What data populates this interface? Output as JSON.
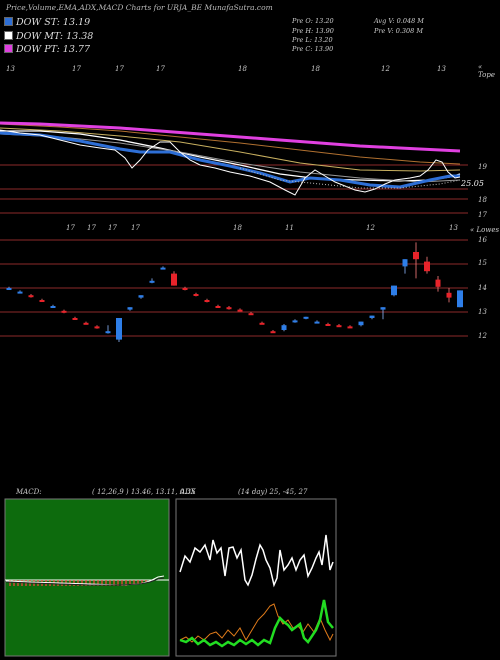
{
  "header": "Price,Volume,EMA,ADX,MACD Charts for URJA_BE MunafaSutra.com",
  "legend": [
    {
      "label": "DOW ST: 13.19",
      "color": "#2e6fd6"
    },
    {
      "label": "DOW MT: 13.38",
      "color": "#ffffff"
    },
    {
      "label": "DOW PT: 13.77",
      "color": "#e040e0"
    }
  ],
  "ohlc": {
    "open": "Pre  O: 13.20",
    "high": "Pre  H: 13.90",
    "low": "Pre  L: 13.20",
    "close": "Pre  C: 13.90",
    "avg_volume": "Avg V: 0.048 M",
    "pre_volume": "Pre  V: 0.308  M"
  },
  "top_panel": {
    "corner": "« Tope",
    "date_labels": [
      "13",
      "17",
      "17",
      "17",
      "18",
      "18",
      "12",
      "13"
    ],
    "y_labels": [
      "19",
      "25.05",
      "18",
      "17"
    ],
    "colors": {
      "ema_white": "#ffffff",
      "ema_pink": "#e040e0",
      "ema_blue": "#2e6fd6",
      "ema_orange": "#d08a30",
      "grid": "#8b2a2a"
    }
  },
  "candle_panel": {
    "corner": "« Lowes",
    "date_labels": [
      "17",
      "17",
      "17",
      "17",
      "18",
      "11",
      "12",
      "13"
    ],
    "y_labels": [
      "16",
      "15",
      "14",
      "13",
      "12"
    ]
  },
  "macd": {
    "title": "MACD:",
    "params": "( 12,26,9 ) 13.46,  13.11,  0.35"
  },
  "adx": {
    "title": "ADX",
    "params": "(14  day) 25,  -45,  27"
  },
  "chart_data": {
    "type": "candlestick",
    "y_axis_labels": [
      16,
      15,
      14,
      13,
      12
    ],
    "candles": [
      {
        "o": 14.0,
        "h": 14.05,
        "l": 13.95,
        "c": 14.0,
        "color": "blue"
      },
      {
        "o": 13.85,
        "h": 13.9,
        "l": 13.8,
        "c": 13.85,
        "color": "blue"
      },
      {
        "o": 13.7,
        "h": 13.75,
        "l": 13.6,
        "c": 13.65,
        "color": "red"
      },
      {
        "o": 13.5,
        "h": 13.55,
        "l": 13.45,
        "c": 13.5,
        "color": "red"
      },
      {
        "o": 13.25,
        "h": 13.3,
        "l": 13.2,
        "c": 13.25,
        "color": "blue"
      },
      {
        "o": 13.05,
        "h": 13.1,
        "l": 12.95,
        "c": 13.0,
        "color": "red"
      },
      {
        "o": 12.75,
        "h": 12.8,
        "l": 12.7,
        "c": 12.75,
        "color": "red"
      },
      {
        "o": 12.55,
        "h": 12.6,
        "l": 12.5,
        "c": 12.55,
        "color": "red"
      },
      {
        "o": 12.4,
        "h": 12.45,
        "l": 12.3,
        "c": 12.35,
        "color": "red"
      },
      {
        "o": 12.15,
        "h": 12.45,
        "l": 12.1,
        "c": 12.2,
        "color": "blue"
      },
      {
        "o": 11.85,
        "h": 12.75,
        "l": 11.75,
        "c": 12.75,
        "color": "blue"
      },
      {
        "o": 13.1,
        "h": 13.2,
        "l": 13.05,
        "c": 13.2,
        "color": "blue"
      },
      {
        "o": 13.6,
        "h": 13.7,
        "l": 13.55,
        "c": 13.7,
        "color": "blue"
      },
      {
        "o": 14.25,
        "h": 14.4,
        "l": 14.2,
        "c": 14.3,
        "color": "blue"
      },
      {
        "o": 14.85,
        "h": 14.9,
        "l": 14.8,
        "c": 14.85,
        "color": "blue"
      },
      {
        "o": 14.6,
        "h": 14.7,
        "l": 14.1,
        "c": 14.1,
        "color": "red"
      },
      {
        "o": 14.0,
        "h": 14.05,
        "l": 13.9,
        "c": 13.95,
        "color": "red"
      },
      {
        "o": 13.75,
        "h": 13.8,
        "l": 13.65,
        "c": 13.7,
        "color": "red"
      },
      {
        "o": 13.5,
        "h": 13.55,
        "l": 13.4,
        "c": 13.45,
        "color": "red"
      },
      {
        "o": 13.25,
        "h": 13.3,
        "l": 13.2,
        "c": 13.2,
        "color": "red"
      },
      {
        "o": 13.2,
        "h": 13.25,
        "l": 13.1,
        "c": 13.15,
        "color": "red"
      },
      {
        "o": 13.1,
        "h": 13.15,
        "l": 13.05,
        "c": 13.05,
        "color": "red"
      },
      {
        "o": 12.95,
        "h": 13.0,
        "l": 12.9,
        "c": 12.9,
        "color": "red"
      },
      {
        "o": 12.55,
        "h": 12.6,
        "l": 12.5,
        "c": 12.55,
        "color": "red"
      },
      {
        "o": 12.2,
        "h": 12.25,
        "l": 12.15,
        "c": 12.2,
        "color": "red"
      },
      {
        "o": 12.25,
        "h": 12.5,
        "l": 12.2,
        "c": 12.45,
        "color": "blue"
      },
      {
        "o": 12.6,
        "h": 12.7,
        "l": 12.55,
        "c": 12.65,
        "color": "blue"
      },
      {
        "o": 12.75,
        "h": 12.8,
        "l": 12.7,
        "c": 12.8,
        "color": "blue"
      },
      {
        "o": 12.6,
        "h": 12.65,
        "l": 12.55,
        "c": 12.6,
        "color": "blue"
      },
      {
        "o": 12.5,
        "h": 12.55,
        "l": 12.45,
        "c": 12.5,
        "color": "red"
      },
      {
        "o": 12.45,
        "h": 12.5,
        "l": 12.4,
        "c": 12.45,
        "color": "red"
      },
      {
        "o": 12.4,
        "h": 12.45,
        "l": 12.35,
        "c": 12.4,
        "color": "red"
      },
      {
        "o": 12.45,
        "h": 12.6,
        "l": 12.4,
        "c": 12.6,
        "color": "blue"
      },
      {
        "o": 12.75,
        "h": 12.85,
        "l": 12.7,
        "c": 12.85,
        "color": "blue"
      },
      {
        "o": 13.1,
        "h": 13.2,
        "l": 12.7,
        "c": 13.2,
        "color": "blue"
      },
      {
        "o": 13.7,
        "h": 14.1,
        "l": 13.65,
        "c": 14.1,
        "color": "blue"
      },
      {
        "o": 14.9,
        "h": 15.2,
        "l": 14.6,
        "c": 15.2,
        "color": "blue"
      },
      {
        "o": 15.5,
        "h": 15.9,
        "l": 14.4,
        "c": 15.2,
        "color": "red"
      },
      {
        "o": 15.1,
        "h": 15.3,
        "l": 14.6,
        "c": 14.7,
        "color": "red"
      },
      {
        "o": 14.35,
        "h": 14.5,
        "l": 13.85,
        "c": 14.05,
        "color": "red"
      },
      {
        "o": 13.6,
        "h": 14.0,
        "l": 13.4,
        "c": 13.8,
        "color": "red"
      },
      {
        "o": 13.2,
        "h": 13.9,
        "l": 13.2,
        "c": 13.9,
        "color": "blue"
      }
    ]
  }
}
